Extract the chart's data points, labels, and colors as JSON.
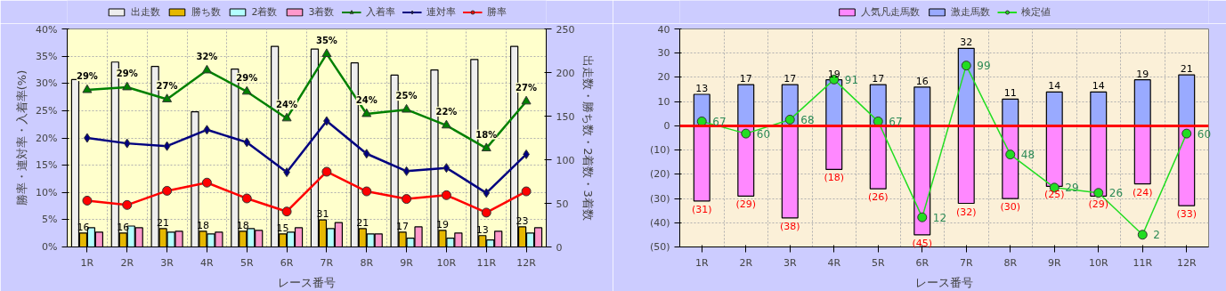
{
  "chart_data": [
    {
      "type": "bar",
      "xlabel": "レース番号",
      "ylabel": "勝率・連対率・入着率(%)",
      "y2label": "出走数・勝ち数・2着数・3着数",
      "categories": [
        "1R",
        "2R",
        "3R",
        "4R",
        "5R",
        "6R",
        "7R",
        "8R",
        "9R",
        "10R",
        "11R",
        "12R"
      ],
      "ylim": [
        0,
        40
      ],
      "yticks": [
        {
          "value": 0,
          "label": "0%"
        },
        {
          "value": 5,
          "label": "5%"
        },
        {
          "value": 10,
          "label": "10%"
        },
        {
          "value": 15,
          "label": "15%"
        },
        {
          "value": 20,
          "label": "20%"
        },
        {
          "value": 25,
          "label": "25%"
        },
        {
          "value": 30,
          "label": "30%"
        },
        {
          "value": 35,
          "label": "35%"
        },
        {
          "value": 40,
          "label": "40%"
        }
      ],
      "y2lim": [
        0,
        250
      ],
      "y2ticks": [
        0,
        50,
        100,
        150,
        200,
        250
      ],
      "grid": true,
      "legend": "top",
      "series": [
        {
          "name": "出走数",
          "axis": "y2",
          "color": "#eeeeee",
          "values": [
            192,
            212,
            207,
            155,
            204,
            230,
            227,
            211,
            197,
            203,
            215,
            230
          ]
        },
        {
          "name": "勝ち数",
          "axis": "y2",
          "color": "#e6b800",
          "values": [
            16,
            16,
            21,
            18,
            18,
            15,
            31,
            21,
            17,
            19,
            13,
            23
          ],
          "value_labels": [
            "16",
            "16",
            "21",
            "18",
            "18",
            "15",
            "31",
            "21",
            "17",
            "19",
            "13",
            "23"
          ]
        },
        {
          "name": "2着数",
          "axis": "y2",
          "color": "#b3ffff",
          "values": [
            22,
            24,
            17,
            15,
            21,
            17,
            21,
            15,
            10,
            10,
            8,
            16
          ]
        },
        {
          "name": "3着数",
          "axis": "y2",
          "color": "#ff99cc",
          "values": [
            17,
            22,
            18,
            17,
            19,
            22,
            28,
            15,
            23,
            16,
            18,
            22
          ]
        },
        {
          "name": "入着率",
          "type": "line",
          "color": "#008000",
          "marker": "triangle",
          "values": [
            28.8,
            29.3,
            27.1,
            32.4,
            28.5,
            23.6,
            35.4,
            24.4,
            25.2,
            22.3,
            18.1,
            26.7
          ],
          "value_labels": [
            "29%",
            "29%",
            "27%",
            "32%",
            "29%",
            "24%",
            "35%",
            "24%",
            "25%",
            "22%",
            "18%",
            "27%"
          ]
        },
        {
          "name": "連対率",
          "type": "line",
          "color": "#000080",
          "marker": "diamond",
          "values": [
            20.0,
            19.0,
            18.5,
            21.5,
            19.2,
            13.7,
            23.1,
            17.1,
            13.9,
            14.5,
            9.9,
            17.0
          ]
        },
        {
          "name": "勝率",
          "type": "line",
          "color": "#ff0000",
          "marker": "circle",
          "values": [
            8.5,
            7.7,
            10.3,
            11.8,
            8.9,
            6.5,
            13.8,
            10.2,
            8.8,
            9.5,
            6.3,
            10.2
          ]
        }
      ]
    },
    {
      "type": "bar",
      "xlabel": "レース番号",
      "stacked": true,
      "categories": [
        "1R",
        "2R",
        "3R",
        "4R",
        "5R",
        "6R",
        "7R",
        "8R",
        "9R",
        "10R",
        "11R",
        "12R"
      ],
      "ylim": [
        -50,
        40
      ],
      "yticks": [
        {
          "value": -50,
          "label": "(50)"
        },
        {
          "value": -40,
          "label": "(40)"
        },
        {
          "value": -30,
          "label": "(30)"
        },
        {
          "value": -20,
          "label": "(20)"
        },
        {
          "value": -10,
          "label": "(10)"
        },
        0,
        10,
        20,
        30,
        40
      ],
      "grid": true,
      "legend": "top",
      "y2lim": [
        -5,
        120
      ],
      "tick_labels": "xy",
      "ref_lines": [
        {
          "axis": "y",
          "value": 0,
          "color": "#ff0000"
        }
      ],
      "series": [
        {
          "name": "人気凡走馬数",
          "color": "#ff88ff",
          "values": [
            -31,
            -29,
            -38,
            -18,
            -26,
            -45,
            -32,
            -30,
            -25,
            -29,
            -24,
            -33
          ],
          "value_labels": [
            "(31)",
            "(29)",
            "(38)",
            "(18)",
            "(26)",
            "(45)",
            "(32)",
            "(30)",
            "(25)",
            "(29)",
            "(24)",
            "(33)"
          ]
        },
        {
          "name": "激走馬数",
          "color": "#99aaff",
          "values": [
            13,
            17,
            17,
            19,
            17,
            16,
            32,
            11,
            14,
            14,
            19,
            21
          ],
          "value_labels": [
            "13",
            "17",
            "17",
            "19",
            "17",
            "16",
            "32",
            "11",
            "14",
            "14",
            "19",
            "21"
          ]
        },
        {
          "name": "検定値",
          "type": "line",
          "axis": "y2",
          "color": "#22dd22",
          "marker": "circle",
          "values": [
            67,
            60,
            68,
            91,
            67,
            12,
            99,
            48,
            29,
            26,
            2,
            60
          ],
          "value_labels": [
            "67",
            "60",
            "68",
            "91",
            "67",
            "12",
            "99",
            "48",
            "29",
            "26",
            "2",
            "60"
          ]
        }
      ]
    }
  ]
}
